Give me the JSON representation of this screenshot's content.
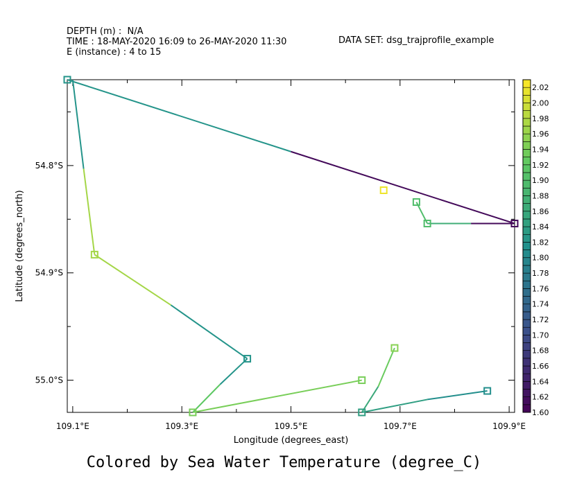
{
  "header": {
    "depth": "DEPTH (m) :  N/A",
    "time": "TIME : 18-MAY-2020 16:09 to 26-MAY-2020 11:30",
    "instance": "E (instance) : 4 to 15",
    "dataset": "DATA SET: dsg_trajprofile_example"
  },
  "footer": "Colored by Sea Water Temperature (degree_C)",
  "chart_data": {
    "type": "line",
    "xlabel": "Longitude (degrees_east)",
    "ylabel": "Latitude (degrees_north)",
    "xlim": [
      109.09,
      109.91
    ],
    "ylim": [
      -55.03,
      -54.72
    ],
    "x_ticks": [
      {
        "v": 109.1,
        "label": "109.1°E"
      },
      {
        "v": 109.3,
        "label": "109.3°E"
      },
      {
        "v": 109.5,
        "label": "109.5°E"
      },
      {
        "v": 109.7,
        "label": "109.7°E"
      },
      {
        "v": 109.9,
        "label": "109.9°E"
      }
    ],
    "x_minor_ticks": [
      109.2,
      109.4,
      109.6,
      109.8
    ],
    "y_ticks": [
      {
        "v": -54.8,
        "label": "54.8°S"
      },
      {
        "v": -54.9,
        "label": "54.9°S"
      },
      {
        "v": -55.0,
        "label": "55.0°S"
      }
    ],
    "y_minor_ticks": [
      -54.75,
      -54.85,
      -54.95
    ],
    "colorbar": {
      "min": 1.6,
      "max": 2.03,
      "step": 0.01,
      "labels": [
        "2.02",
        "2.00",
        "1.98",
        "1.96",
        "1.94",
        "1.92",
        "1.90",
        "1.88",
        "1.86",
        "1.84",
        "1.82",
        "1.80",
        "1.78",
        "1.76",
        "1.74",
        "1.72",
        "1.70",
        "1.68",
        "1.66",
        "1.64",
        "1.62",
        "1.60"
      ]
    },
    "series": [
      {
        "segments": [
          {
            "x": [
              109.09,
              109.5
            ],
            "y": [
              -54.72,
              -54.787
            ],
            "temp": [
              1.82,
              1.82
            ]
          },
          {
            "x": [
              109.5,
              109.91
            ],
            "y": [
              -54.787,
              -54.854
            ],
            "temp": [
              1.61,
              1.61
            ]
          },
          {
            "x": [
              109.91,
              109.83
            ],
            "y": [
              -54.854,
              -54.854
            ],
            "temp": [
              1.61,
              1.61
            ]
          },
          {
            "x": [
              109.83,
              109.75
            ],
            "y": [
              -54.854,
              -54.854
            ],
            "temp": [
              1.87,
              1.87
            ]
          },
          {
            "x": [
              109.75,
              109.73
            ],
            "y": [
              -54.854,
              -54.834
            ],
            "temp": [
              1.9,
              1.9
            ]
          }
        ],
        "markers": [
          {
            "x": 109.09,
            "y": -54.72,
            "temp": 1.82
          },
          {
            "x": 109.91,
            "y": -54.854,
            "temp": 1.61
          },
          {
            "x": 109.75,
            "y": -54.854,
            "temp": 1.9
          },
          {
            "x": 109.73,
            "y": -54.834,
            "temp": 1.9
          }
        ]
      },
      {
        "segments": [
          {
            "x": [
              109.1,
              109.12
            ],
            "y": [
              -54.72,
              -54.803
            ],
            "temp": [
              1.82,
              1.82
            ]
          },
          {
            "x": [
              109.12,
              109.14
            ],
            "y": [
              -54.803,
              -54.883
            ],
            "temp": [
              1.97,
              1.97
            ]
          },
          {
            "x": [
              109.14,
              109.28
            ],
            "y": [
              -54.883,
              -54.93
            ],
            "temp": [
              1.97,
              1.97
            ]
          },
          {
            "x": [
              109.28,
              109.42
            ],
            "y": [
              -54.93,
              -54.98
            ],
            "temp": [
              1.82,
              1.82
            ]
          }
        ],
        "markers": [
          {
            "x": 109.14,
            "y": -54.883,
            "temp": 1.97
          },
          {
            "x": 109.42,
            "y": -54.98,
            "temp": 1.82
          }
        ]
      },
      {
        "segments": [
          {
            "x": [
              109.42,
              109.37
            ],
            "y": [
              -54.98,
              -55.004
            ],
            "temp": [
              1.82,
              1.82
            ]
          },
          {
            "x": [
              109.37,
              109.32
            ],
            "y": [
              -55.004,
              -55.03
            ],
            "temp": [
              1.92,
              1.92
            ]
          },
          {
            "x": [
              109.32,
              109.63
            ],
            "y": [
              -55.03,
              -55.0
            ],
            "temp": [
              1.94,
              1.94
            ]
          }
        ],
        "markers": [
          {
            "x": 109.32,
            "y": -55.03,
            "temp": 1.94
          },
          {
            "x": 109.63,
            "y": -55.0,
            "temp": 1.94
          }
        ]
      },
      {
        "segments": [
          {
            "x": [
              109.63,
              109.66
            ],
            "y": [
              -55.03,
              -55.006
            ],
            "temp": [
              1.86,
              1.86
            ]
          },
          {
            "x": [
              109.66,
              109.69
            ],
            "y": [
              -55.006,
              -54.97
            ],
            "temp": [
              1.93,
              1.93
            ]
          }
        ],
        "markers": [
          {
            "x": 109.69,
            "y": -54.97,
            "temp": 1.95
          }
        ]
      },
      {
        "segments": [
          {
            "x": [
              109.63,
              109.75
            ],
            "y": [
              -55.03,
              -55.018
            ],
            "temp": [
              1.84,
              1.84
            ]
          },
          {
            "x": [
              109.75,
              109.86
            ],
            "y": [
              -55.018,
              -55.01
            ],
            "temp": [
              1.81,
              1.81
            ]
          }
        ],
        "markers": [
          {
            "x": 109.63,
            "y": -55.03,
            "temp": 1.84
          },
          {
            "x": 109.86,
            "y": -55.01,
            "temp": 1.81
          }
        ]
      },
      {
        "segments": [],
        "markers": [
          {
            "x": 109.67,
            "y": -54.823,
            "temp": 2.02
          }
        ]
      }
    ]
  }
}
